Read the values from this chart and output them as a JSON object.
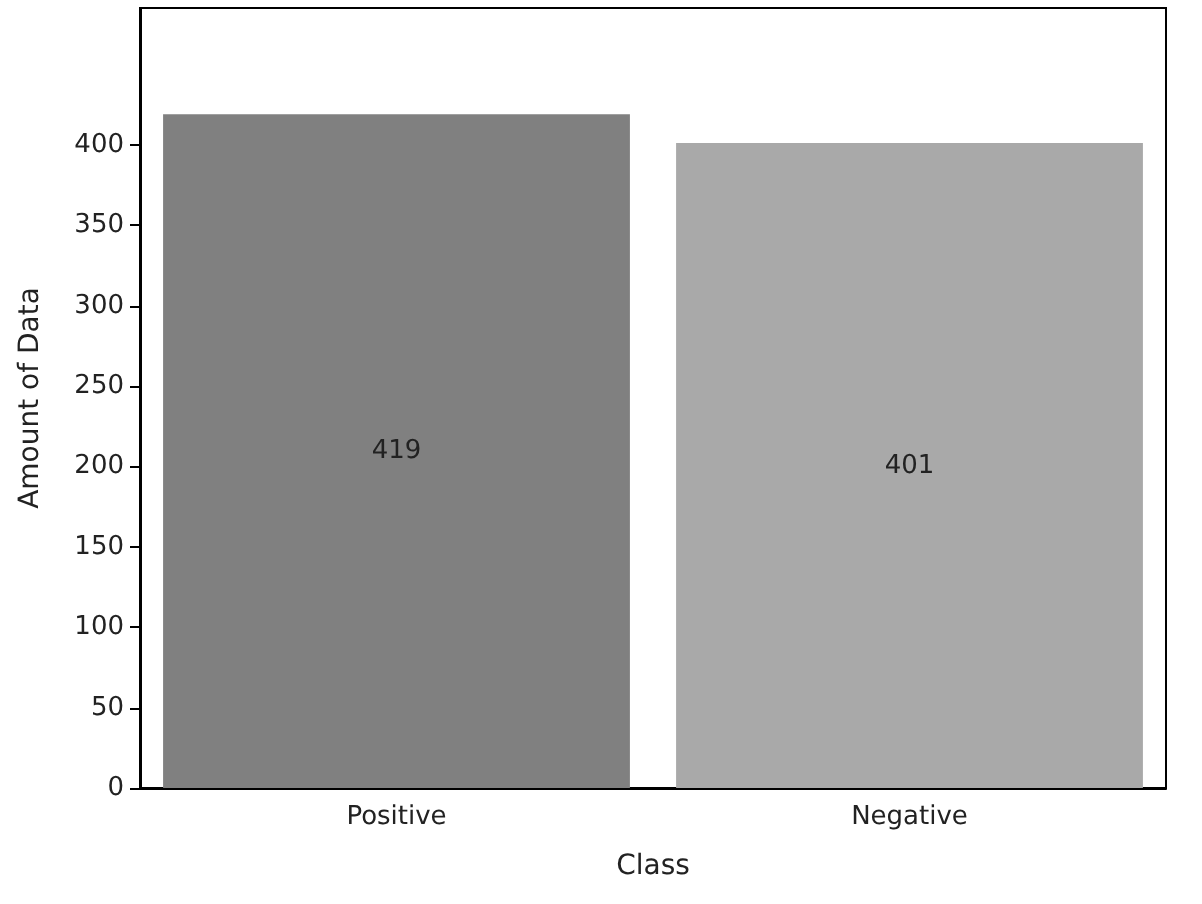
{
  "chart_data": {
    "type": "bar",
    "xlabel": "Class",
    "ylabel": "Amount of Data",
    "categories": [
      "Positive",
      "Negative"
    ],
    "values": [
      419,
      401
    ],
    "colors": [
      "#808080",
      "#a9a9a9"
    ],
    "ylim": [
      0,
      485
    ],
    "yticks": [
      0,
      50,
      100,
      150,
      200,
      250,
      300,
      350,
      400
    ],
    "data_labels": true,
    "grid": false
  }
}
